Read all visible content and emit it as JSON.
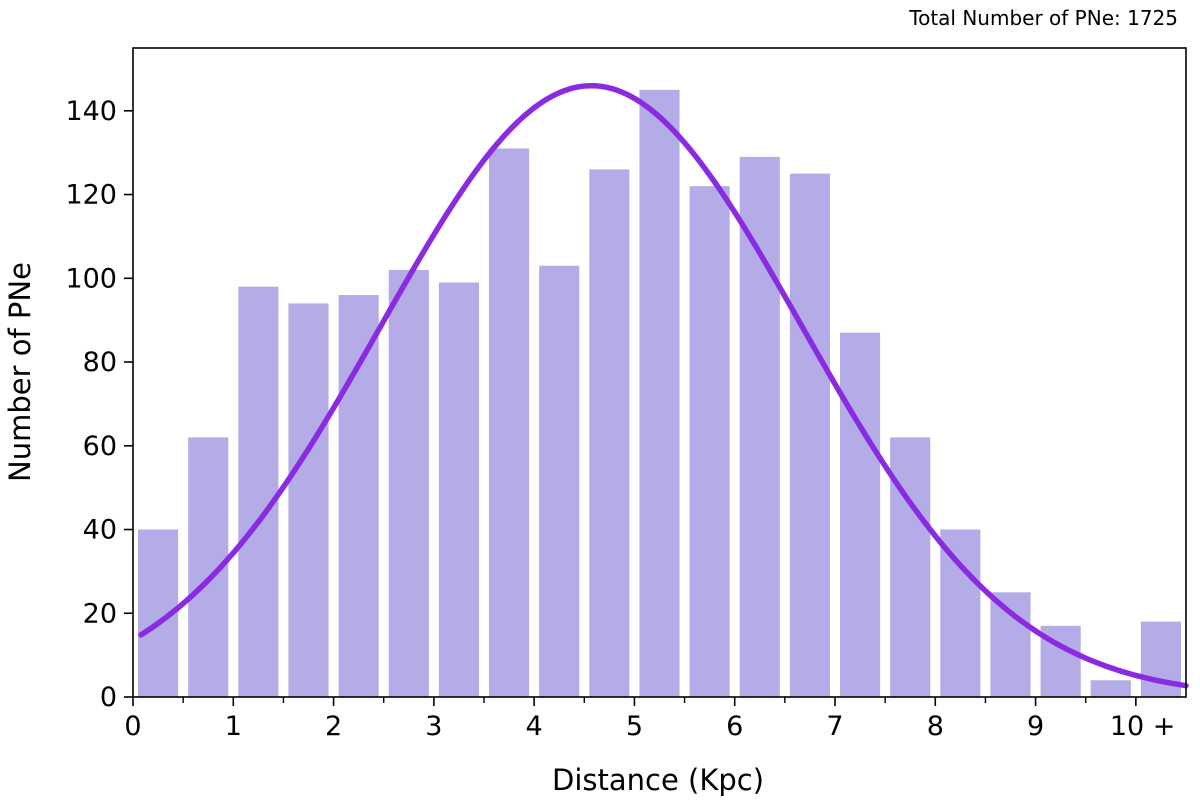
{
  "chart_data": {
    "type": "bar",
    "annotation": "Total Number of PNe: 1725",
    "xlabel": "Distance (Kpc)",
    "ylabel": "Number of PNe",
    "xlim": [
      0,
      10.5
    ],
    "ylim": [
      0,
      155
    ],
    "xticks": [
      0,
      1,
      2,
      3,
      4,
      5,
      6,
      7,
      8,
      9,
      10
    ],
    "xtick_labels": [
      "0",
      "1",
      "2",
      "3",
      "4",
      "5",
      "6",
      "7",
      "8",
      "9",
      "10 +"
    ],
    "minor_xticks": [
      0.5,
      1.5,
      2.5,
      3.5,
      4.5,
      5.5,
      6.5,
      7.5,
      8.5,
      9.5
    ],
    "yticks": [
      0,
      20,
      40,
      60,
      80,
      100,
      120,
      140
    ],
    "bar_width": 0.4,
    "bar_centers": [
      0.25,
      0.75,
      1.25,
      1.75,
      2.25,
      2.75,
      3.25,
      3.75,
      4.25,
      4.75,
      5.25,
      5.75,
      6.25,
      6.75,
      7.25,
      7.75,
      8.25,
      8.75,
      9.25,
      9.75,
      10.25
    ],
    "values": [
      40,
      62,
      98,
      94,
      96,
      102,
      99,
      131,
      103,
      126,
      145,
      122,
      129,
      125,
      87,
      62,
      40,
      25,
      17,
      4,
      18
    ],
    "fit_curve": {
      "type": "gaussian",
      "peak": 146,
      "center": 4.57,
      "sigma": 2.1,
      "x_range": [
        0.08,
        10.5
      ]
    },
    "colors": {
      "bars": "#b3acE6",
      "curve": "#8a2be2",
      "axes": "#000000"
    },
    "grid": false
  }
}
